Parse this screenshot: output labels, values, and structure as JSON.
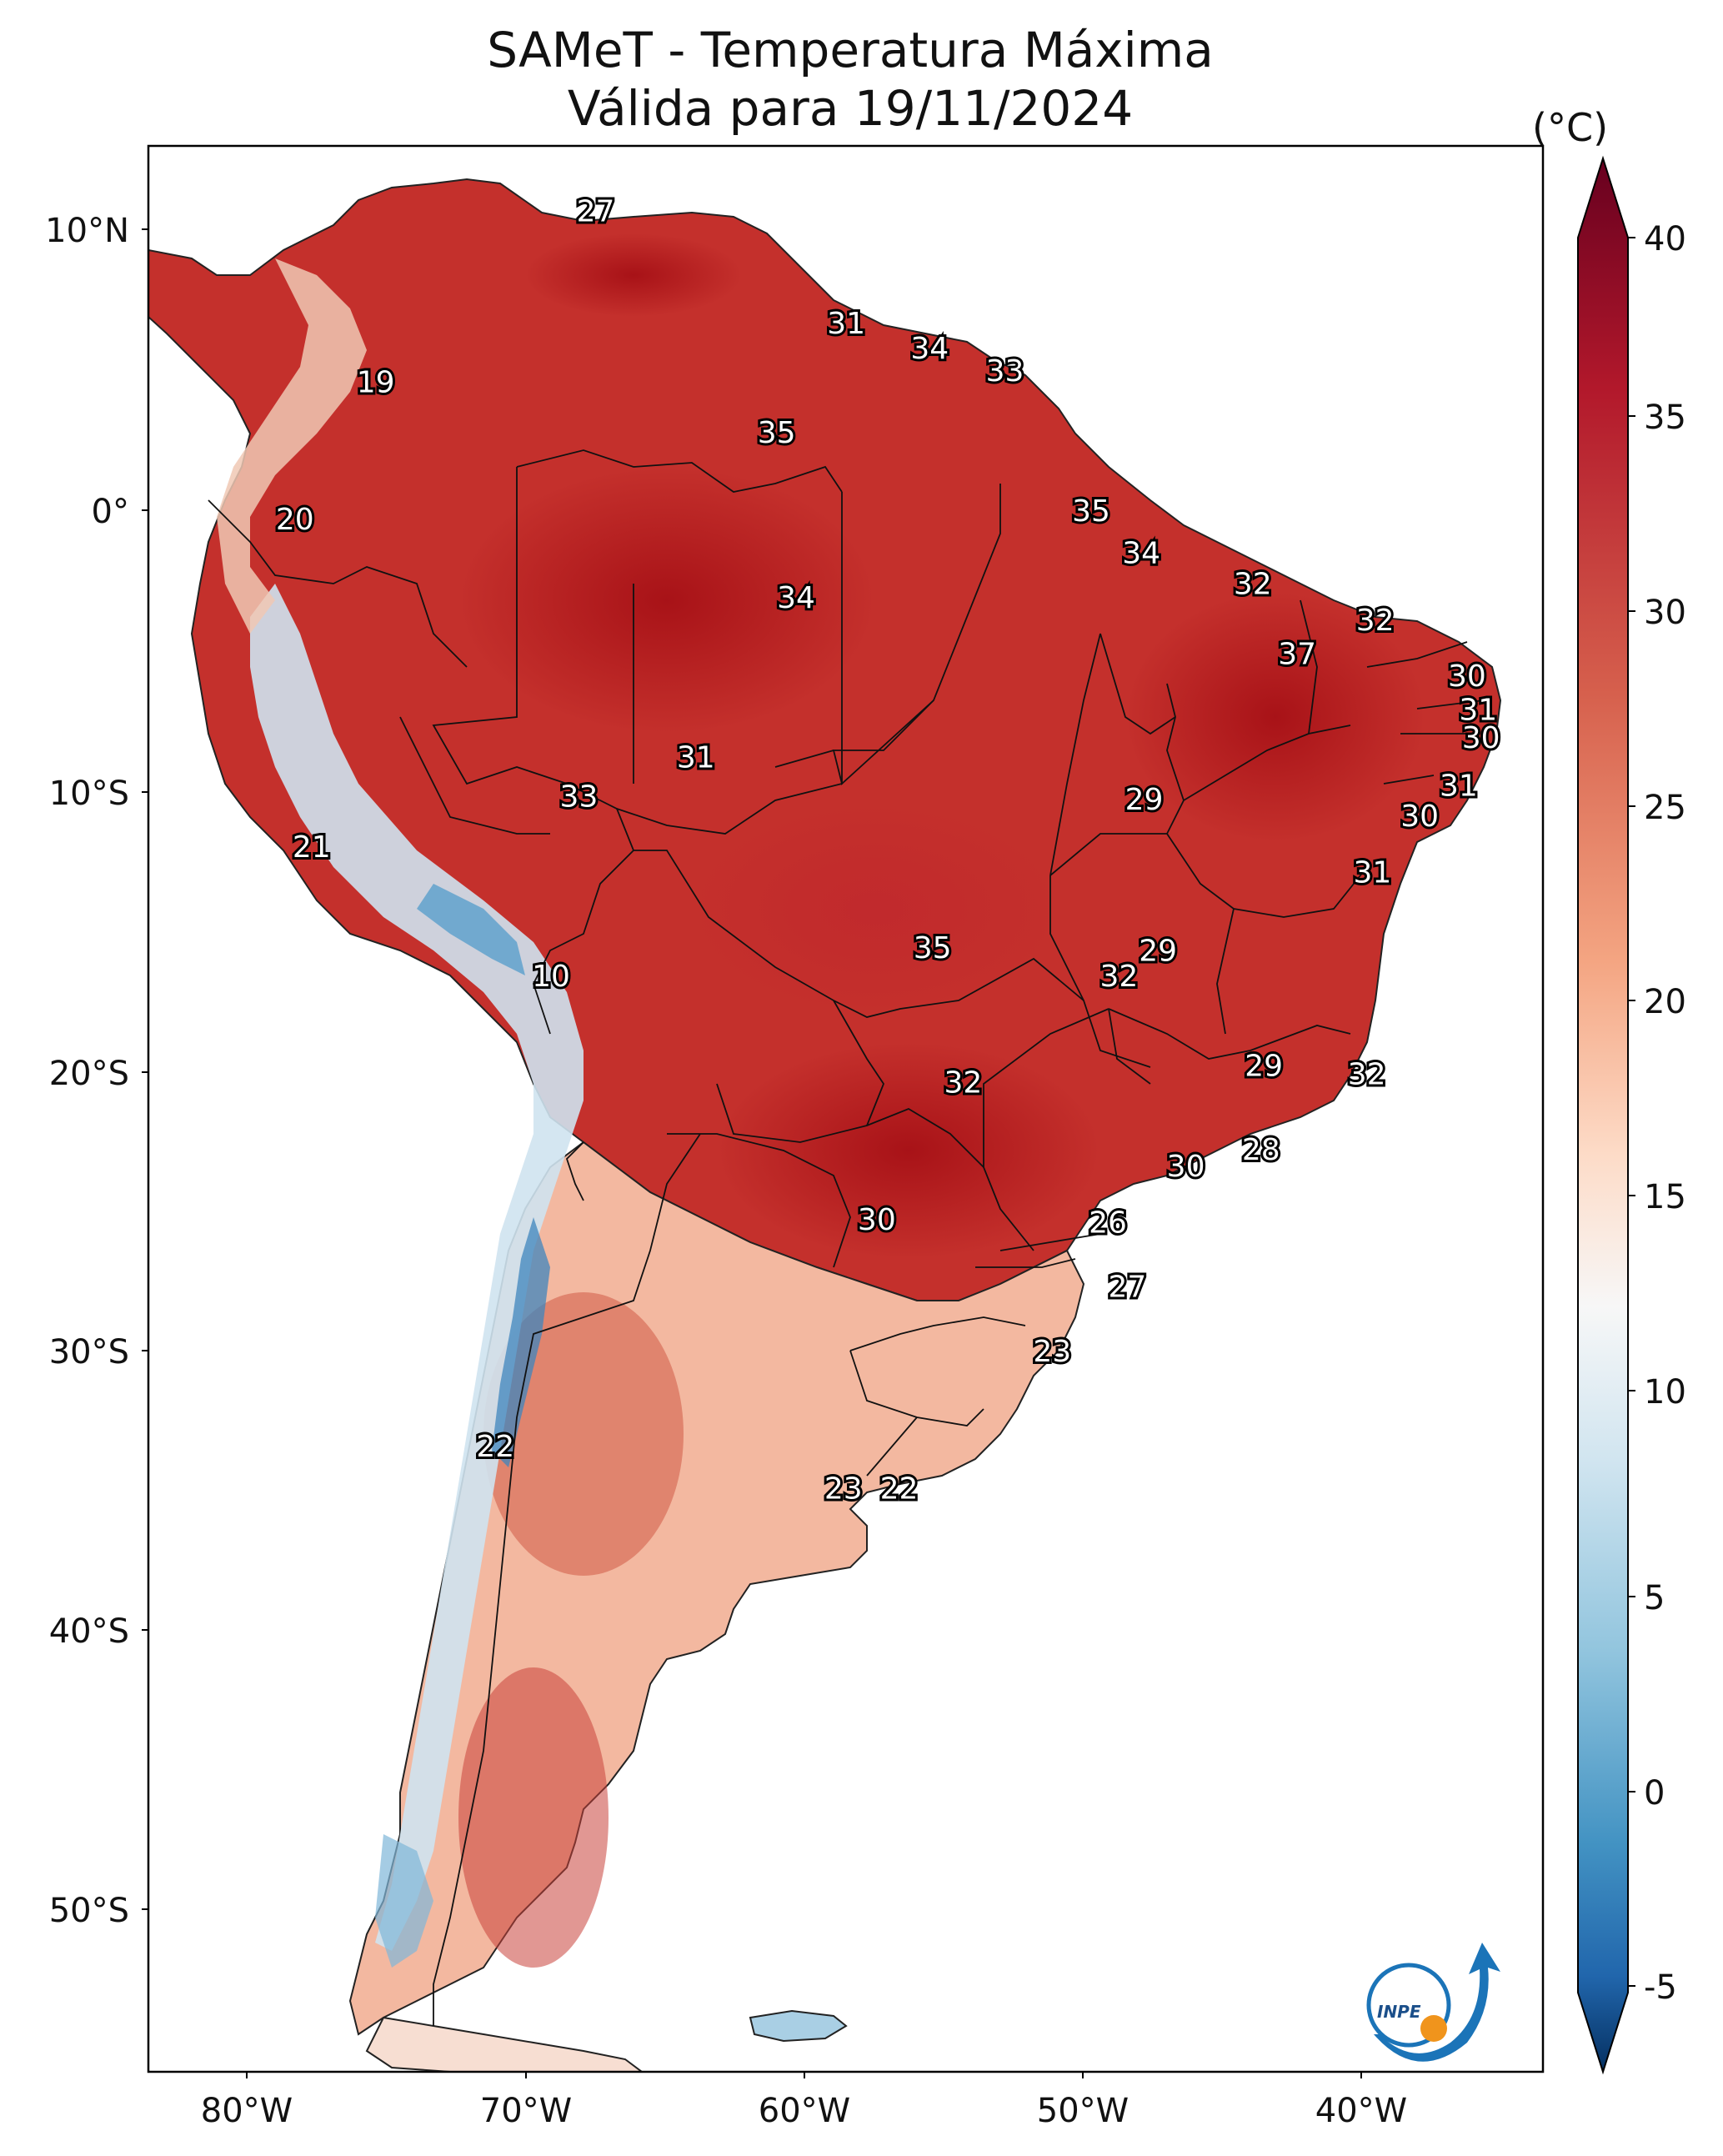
{
  "map": {
    "title": "SAMeT - Temperatura Máxima",
    "subtitle": "Válida para 19/11/2024",
    "colorbar": {
      "unit": "(°C)",
      "ticks": [
        "40",
        "35",
        "30",
        "25",
        "20",
        "15",
        "10",
        "5",
        "0",
        "-5"
      ]
    },
    "lat_labels": [
      "10°N",
      "0°",
      "10°S",
      "20°S",
      "30°S",
      "40°S",
      "50°S"
    ],
    "lon_labels": [
      "80°W",
      "70°W",
      "60°W",
      "50°W",
      "40°W"
    ],
    "logo_text": "INPE",
    "temperature_labels": [
      {
        "v": "27",
        "lon": -67.5,
        "lat": 10.7
      },
      {
        "v": "19",
        "lon": -75.4,
        "lat": 4.6
      },
      {
        "v": "20",
        "lon": -78.3,
        "lat": -0.3
      },
      {
        "v": "31",
        "lon": -58.5,
        "lat": 6.7
      },
      {
        "v": "34",
        "lon": -55.5,
        "lat": 5.8
      },
      {
        "v": "33",
        "lon": -52.8,
        "lat": 5.0
      },
      {
        "v": "35",
        "lon": -61.0,
        "lat": 2.8
      },
      {
        "v": "35",
        "lon": -49.7,
        "lat": 0.0
      },
      {
        "v": "34",
        "lon": -47.9,
        "lat": -1.5
      },
      {
        "v": "34",
        "lon": -60.3,
        "lat": -3.1
      },
      {
        "v": "32",
        "lon": -43.9,
        "lat": -2.6
      },
      {
        "v": "32",
        "lon": -39.5,
        "lat": -3.9
      },
      {
        "v": "37",
        "lon": -42.3,
        "lat": -5.1
      },
      {
        "v": "30",
        "lon": -36.2,
        "lat": -5.9
      },
      {
        "v": "31",
        "lon": -35.8,
        "lat": -7.1
      },
      {
        "v": "30",
        "lon": -35.7,
        "lat": -8.1
      },
      {
        "v": "31",
        "lon": -36.5,
        "lat": -9.8
      },
      {
        "v": "30",
        "lon": -37.9,
        "lat": -10.9
      },
      {
        "v": "31",
        "lon": -39.6,
        "lat": -12.9
      },
      {
        "v": "31",
        "lon": -63.9,
        "lat": -8.8
      },
      {
        "v": "33",
        "lon": -68.1,
        "lat": -10.2
      },
      {
        "v": "29",
        "lon": -47.8,
        "lat": -10.3
      },
      {
        "v": "21",
        "lon": -77.7,
        "lat": -12.0
      },
      {
        "v": "10",
        "lon": -69.1,
        "lat": -16.6
      },
      {
        "v": "35",
        "lon": -55.4,
        "lat": -15.6
      },
      {
        "v": "29",
        "lon": -47.3,
        "lat": -15.7
      },
      {
        "v": "32",
        "lon": -48.7,
        "lat": -16.6
      },
      {
        "v": "29",
        "lon": -43.5,
        "lat": -19.8
      },
      {
        "v": "32",
        "lon": -39.8,
        "lat": -20.1
      },
      {
        "v": "32",
        "lon": -54.3,
        "lat": -20.4
      },
      {
        "v": "28",
        "lon": -43.6,
        "lat": -22.8
      },
      {
        "v": "30",
        "lon": -46.3,
        "lat": -23.4
      },
      {
        "v": "30",
        "lon": -57.4,
        "lat": -25.3
      },
      {
        "v": "26",
        "lon": -49.1,
        "lat": -25.4
      },
      {
        "v": "27",
        "lon": -48.4,
        "lat": -27.7
      },
      {
        "v": "23",
        "lon": -51.1,
        "lat": -30.0
      },
      {
        "v": "22",
        "lon": -71.1,
        "lat": -33.4
      },
      {
        "v": "23",
        "lon": -58.6,
        "lat": -34.9
      },
      {
        "v": "22",
        "lon": -56.6,
        "lat": -34.9
      }
    ]
  }
}
